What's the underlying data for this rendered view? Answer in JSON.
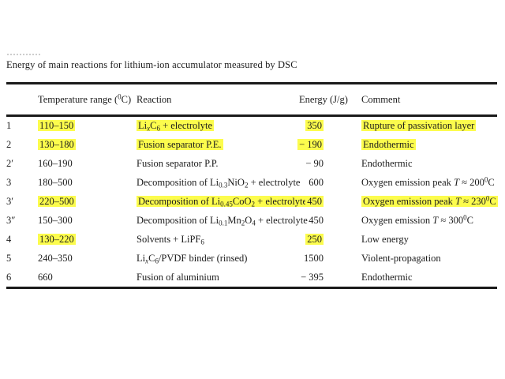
{
  "colors": {
    "page_background": "#ffffff",
    "text": "#1c1c1c",
    "rule": "#1a1a1a",
    "highlight": "#fcfc4d"
  },
  "table": {
    "caption": "Energy of main reactions for lithium-ion accumulator measured by DSC",
    "columns": [
      {
        "key": "num",
        "label": ""
      },
      {
        "key": "temp",
        "label": "Temperature range (^{0}C)"
      },
      {
        "key": "reaction",
        "label": "Reaction"
      },
      {
        "key": "energy",
        "label": "Energy (J/g)"
      },
      {
        "key": "comment",
        "label": "Comment"
      }
    ],
    "rows": [
      {
        "num": "1",
        "temp": "110–150",
        "reaction": "Li_{*x*}C_{6} + electrolyte",
        "energy": "350",
        "comment": "Rupture of passivation layer",
        "hl": [
          "temp",
          "reaction",
          "energy",
          "comment"
        ]
      },
      {
        "num": "2",
        "temp": "130–180",
        "reaction": "Fusion separator P.E.",
        "energy": "− 190",
        "comment": "Endothermic",
        "hl": [
          "temp",
          "reaction",
          "energy",
          "comment"
        ]
      },
      {
        "num": "2′",
        "temp": "160–190",
        "reaction": "Fusion separator P.P.",
        "energy": "− 90",
        "comment": "Endothermic",
        "hl": []
      },
      {
        "num": "3",
        "temp": "180–500",
        "reaction": "Decomposition of Li_{0.3}NiO_{2} + electrolyte",
        "energy": "600",
        "comment": "Oxygen emission peak *T* ≈ 200^{0}C",
        "hl": []
      },
      {
        "num": "3′",
        "temp": "220–500",
        "reaction": "Decomposition of Li_{0.45}CoO_{2} + electrolyte",
        "energy": "450",
        "comment": "Oxygen emission peak *T* ≈ 230^{0}C",
        "hl": [
          "temp",
          "reaction",
          "energy",
          "comment"
        ]
      },
      {
        "num": "3″",
        "temp": "150–300",
        "reaction": "Decomposition of Li_{0.1}Mn_{2}O_{4} + electrolyte",
        "energy": "450",
        "comment": "Oxygen emission *T* ≈ 300^{0}C",
        "hl": []
      },
      {
        "num": "4",
        "temp": "130–220",
        "reaction": "Solvents + LiPF_{6}",
        "energy": "250",
        "comment": "Low energy",
        "hl": [
          "temp",
          "energy"
        ]
      },
      {
        "num": "5",
        "temp": "240–350",
        "reaction": "Li_{*x*}C_{6}/PVDF binder (rinsed)",
        "energy": "1500",
        "comment": "Violent-propagation",
        "hl": []
      },
      {
        "num": "6",
        "temp": "660",
        "reaction": "Fusion of aluminium",
        "energy": "− 395",
        "comment": "Endothermic",
        "hl": []
      }
    ]
  }
}
